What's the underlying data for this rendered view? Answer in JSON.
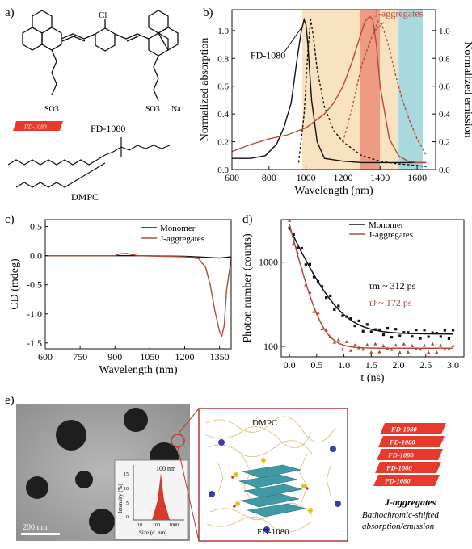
{
  "panels": {
    "a": {
      "label": "a)",
      "molecule1": "FD-1080",
      "tag": "FD-1080",
      "chloro": "Cl",
      "so3_left": "SO3",
      "so3_right": "SO3",
      "na": "Na",
      "molecule2": "DMPC"
    },
    "b": {
      "label": "b)"
    },
    "c": {
      "label": "c)"
    },
    "d": {
      "label": "d)"
    },
    "e": {
      "label": "e)",
      "scalebar": "200 nm",
      "inset_peak": "100 nm",
      "inset_ylabel": "Intensity (%)",
      "inset_xlabel": "Size (d. nm)",
      "inset_ticks_x": [
        "10",
        "100",
        "1000"
      ],
      "inset_ticks_y": [
        "0",
        "5",
        "10",
        "15"
      ],
      "md_dmpc": "DMPC",
      "md_fd": "FD-1080",
      "stack_labels": [
        "FD-1080",
        "FD-1080",
        "FD-1080",
        "FD-1080",
        "FD-1080"
      ],
      "caption_title": "J-aggregates",
      "caption_line1": "Bathochromic-shifted",
      "caption_line2": "absorption/emission"
    }
  },
  "chart_data": [
    {
      "id": "b",
      "type": "line",
      "xlabel": "Wavelength (nm)",
      "ylabel": "Normalized absorption",
      "ylabel2": "Normalized emission",
      "xlim": [
        600,
        1700
      ],
      "ylim": [
        0,
        1.15
      ],
      "xticks": [
        600,
        800,
        1000,
        1200,
        1400,
        1600
      ],
      "yticks": [
        0.0,
        0.2,
        0.4,
        0.6,
        0.8,
        1.0
      ],
      "annotations": [
        "FD-1080",
        "J-aggregates"
      ],
      "bands": [
        {
          "from": 980,
          "to": 1290,
          "color": "#f9e2bf"
        },
        {
          "from": 1290,
          "to": 1400,
          "color": "#ef9a82"
        },
        {
          "from": 1400,
          "to": 1500,
          "color": "#f9e2bf"
        },
        {
          "from": 1500,
          "to": 1630,
          "color": "#a8d9de"
        }
      ],
      "series": [
        {
          "style": "solid",
          "color": "#111111",
          "x": [
            600,
            700,
            780,
            840,
            880,
            920,
            950,
            975,
            990,
            1000,
            1010,
            1030,
            1060,
            1100,
            1200,
            1300,
            1400,
            1500,
            1600,
            1650
          ],
          "y": [
            0.08,
            0.08,
            0.1,
            0.18,
            0.3,
            0.48,
            0.78,
            1.0,
            1.08,
            1.04,
            0.9,
            0.5,
            0.2,
            0.08,
            0.06,
            0.05,
            0.05,
            0.05,
            0.05,
            0.05
          ]
        },
        {
          "style": "dashed",
          "color": "#111111",
          "x": [
            960,
            990,
            1010,
            1025,
            1040,
            1060,
            1100,
            1150,
            1200,
            1250,
            1300,
            1400,
            1500,
            1600,
            1650
          ],
          "y": [
            0.05,
            0.4,
            0.85,
            1.08,
            0.95,
            0.72,
            0.45,
            0.28,
            0.2,
            0.15,
            0.1,
            0.06,
            0.04,
            0.03,
            0.02
          ]
        },
        {
          "style": "solid",
          "color": "#b54a3a",
          "x": [
            600,
            700,
            800,
            900,
            1000,
            1100,
            1150,
            1200,
            1250,
            1290,
            1320,
            1345,
            1360,
            1380,
            1400,
            1450,
            1500,
            1550,
            1600,
            1650
          ],
          "y": [
            0.13,
            0.18,
            0.22,
            0.25,
            0.3,
            0.4,
            0.48,
            0.6,
            0.78,
            0.95,
            1.07,
            1.1,
            1.08,
            0.9,
            0.6,
            0.22,
            0.1,
            0.06,
            0.05,
            0.05
          ]
        },
        {
          "style": "dashed",
          "color": "#b54a3a",
          "x": [
            1200,
            1250,
            1300,
            1340,
            1370,
            1390,
            1410,
            1440,
            1480,
            1520,
            1560,
            1600,
            1650
          ],
          "y": [
            0.2,
            0.45,
            0.75,
            0.9,
            1.0,
            1.07,
            1.04,
            0.92,
            0.7,
            0.5,
            0.35,
            0.22,
            0.1
          ]
        }
      ]
    },
    {
      "id": "c",
      "type": "line",
      "xlabel": "Wavelength (nm)",
      "ylabel": "CD (mdeg)",
      "xlim": [
        600,
        1400
      ],
      "ylim": [
        -1.6,
        0.62
      ],
      "xticks": [
        600,
        750,
        900,
        1050,
        1200,
        1350
      ],
      "yticks": [
        0.5,
        0.0,
        -0.5,
        -1.0,
        -1.5
      ],
      "series": [
        {
          "name": "Monomer",
          "color": "#111111",
          "x": [
            600,
            800,
            1000,
            1200,
            1250,
            1300,
            1350,
            1400
          ],
          "y": [
            0.0,
            0.0,
            0.0,
            -0.01,
            -0.02,
            -0.03,
            -0.04,
            -0.02
          ]
        },
        {
          "name": "J-aggregates",
          "color": "#b54a3a",
          "x": [
            600,
            900,
            920,
            950,
            1000,
            1200,
            1260,
            1290,
            1310,
            1330,
            1350,
            1360,
            1370,
            1380,
            1400
          ],
          "y": [
            0.0,
            0.0,
            0.03,
            0.04,
            0.0,
            -0.02,
            -0.05,
            -0.2,
            -0.5,
            -0.95,
            -1.3,
            -1.38,
            -1.2,
            -0.6,
            -0.05
          ]
        }
      ]
    },
    {
      "id": "d",
      "type": "scatter",
      "xlabel": "t (ns)",
      "ylabel": "Photon number (counts)",
      "xlim": [
        -0.15,
        3.2
      ],
      "ylim": [
        75,
        3200
      ],
      "yscale": "log",
      "xticks": [
        0.0,
        0.5,
        1.0,
        1.5,
        2.0,
        2.5,
        3.0
      ],
      "yticks": [
        100,
        1000
      ],
      "annotations": [
        "τm ~ 312 ps",
        "τJ ~ 172 ps"
      ],
      "series": [
        {
          "name": "Monomer",
          "color": "#111111",
          "marker": "square",
          "fit_tau": 0.312,
          "fit_amp": 2400,
          "fit_base": 140
        },
        {
          "name": "J-aggregates",
          "color": "#b54a3a",
          "marker": "triangle",
          "fit_tau": 0.172,
          "fit_amp": 2700,
          "fit_base": 95
        }
      ]
    }
  ]
}
